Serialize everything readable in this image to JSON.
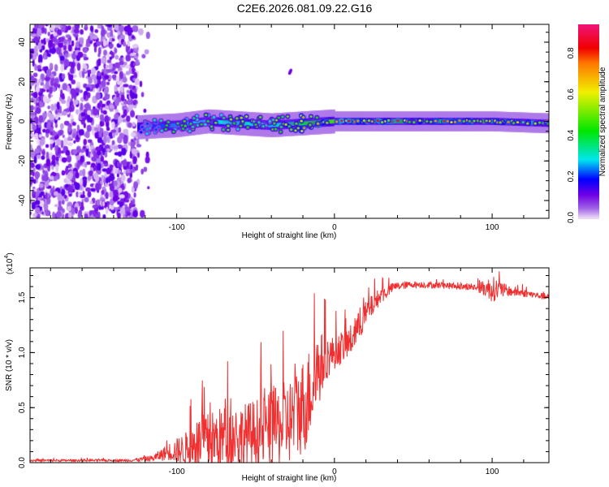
{
  "title": "C2E6.2026.081.09.22.G16",
  "chart_data": [
    {
      "type": "heatmap",
      "title": "C2E6.2026.081.09.22.G16",
      "xlabel": "Height of straight line (km)",
      "ylabel": "Frequency (Hz)",
      "xlim": [
        -193,
        136
      ],
      "ylim": [
        -49,
        49
      ],
      "xticks": [
        "-100",
        "0",
        "100"
      ],
      "yticks": [
        "-40",
        "-20",
        "0",
        "20",
        "40"
      ],
      "colorbar": {
        "label": "Normalized spectral amplitude",
        "range": [
          0,
          0.94
        ],
        "ticks": [
          "0.0",
          "0.2",
          "0.4",
          "0.6",
          "0.8"
        ]
      },
      "noise_region_km": [
        -193,
        -125
      ],
      "ridge": {
        "height_km": [
          -125,
          -100,
          -80,
          -60,
          -40,
          -20,
          0,
          20,
          50,
          100,
          136
        ],
        "frequency_hz": [
          -3,
          -2,
          0,
          -1,
          -2,
          -1,
          0,
          0,
          0,
          0,
          -1
        ],
        "amplitude": [
          0.3,
          0.45,
          0.5,
          0.55,
          0.5,
          0.7,
          0.85,
          0.9,
          0.75,
          0.85,
          0.45
        ]
      }
    },
    {
      "type": "line",
      "xlabel": "Height of straight line (km)",
      "ylabel": "SNR (10 * v/v)",
      "yscale_label": "(x10",
      "yscale_exp": "4",
      "xlim": [
        -193,
        136
      ],
      "ylim": [
        0,
        1.77
      ],
      "xticks": [
        "-100",
        "0",
        "100"
      ],
      "yticks": [
        "0.0",
        "0.5",
        "1.0",
        "1.5"
      ],
      "series": [
        {
          "name": "SNR",
          "color": "#f03030",
          "x": [
            -193,
            -130,
            -115,
            -105,
            -95,
            -85,
            -70,
            -55,
            -40,
            -28,
            -18,
            -10,
            -5,
            0,
            10,
            20,
            28,
            38,
            50,
            70,
            90,
            100,
            110,
            125,
            136
          ],
          "y": [
            0.02,
            0.02,
            0.04,
            0.1,
            0.12,
            0.18,
            0.22,
            0.25,
            0.3,
            0.38,
            0.55,
            0.85,
            0.95,
            1.0,
            1.1,
            1.35,
            1.5,
            1.6,
            1.62,
            1.61,
            1.59,
            1.58,
            1.56,
            1.53,
            1.5
          ],
          "noise": [
            0.01,
            0.01,
            0.03,
            0.08,
            0.15,
            0.25,
            0.3,
            0.3,
            0.35,
            0.4,
            0.45,
            0.35,
            0.2,
            0.15,
            0.15,
            0.12,
            0.08,
            0.04,
            0.03,
            0.03,
            0.03,
            0.12,
            0.05,
            0.03,
            0.03
          ]
        }
      ]
    }
  ]
}
